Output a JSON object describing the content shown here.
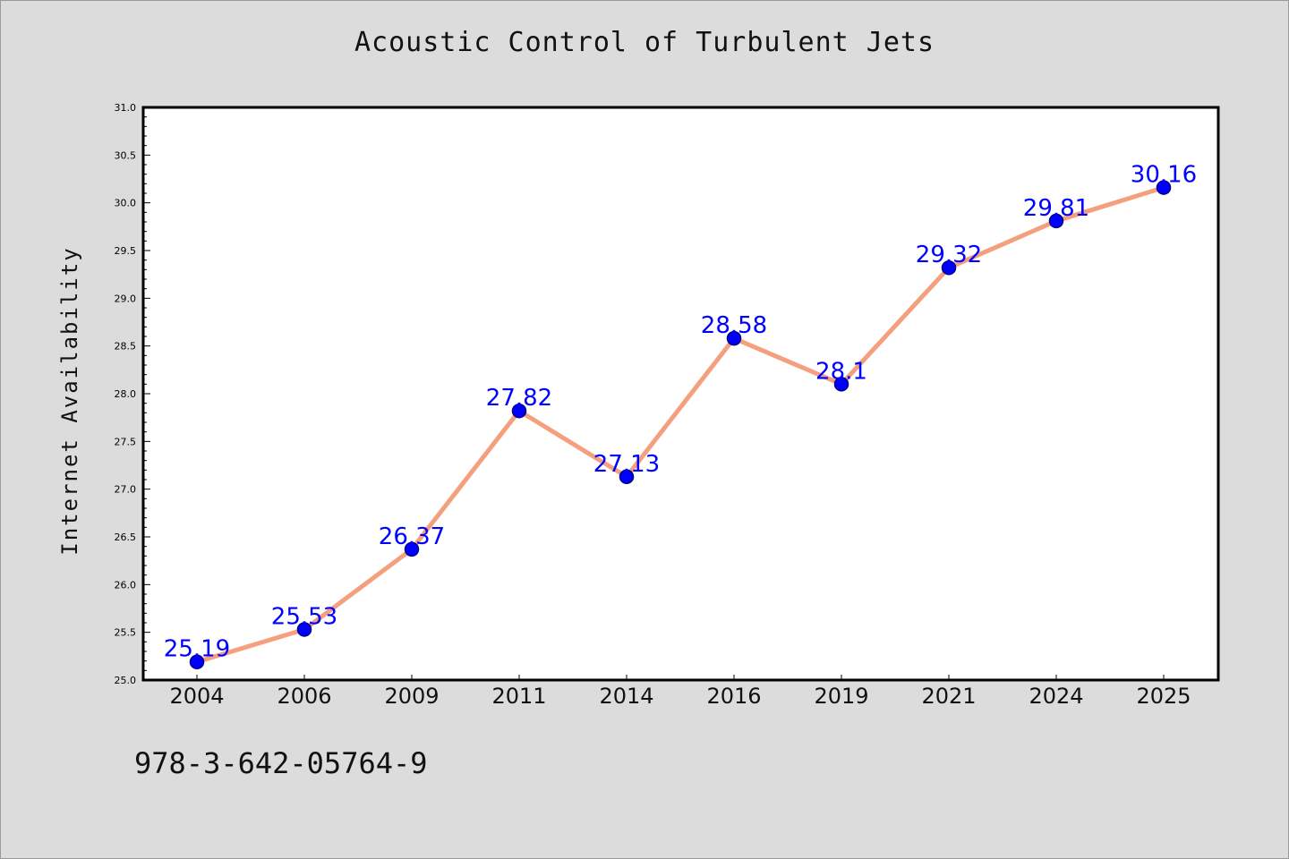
{
  "page": {
    "background": "#dcdcdc",
    "footer_text": "978-3-642-05764-9"
  },
  "chart_data": {
    "type": "line",
    "title": "Acoustic Control of Turbulent Jets",
    "xlabel": "",
    "ylabel": "Internet Availability",
    "categories": [
      "2004",
      "2006",
      "2009",
      "2011",
      "2014",
      "2016",
      "2019",
      "2021",
      "2024",
      "2025"
    ],
    "values": [
      25.19,
      25.53,
      26.37,
      27.82,
      27.13,
      28.58,
      28.1,
      29.32,
      29.81,
      30.16
    ],
    "data_labels": [
      "25.19",
      "25.53",
      "26.37",
      "27.82",
      "27.13",
      "28.58",
      "28.1",
      "29.32",
      "29.81",
      "30.16"
    ],
    "ylim": [
      25.0,
      31.0
    ],
    "y_ticks": [
      "25.0",
      "25.5",
      "26.0",
      "26.5",
      "27.0",
      "27.5",
      "28.0",
      "28.5",
      "29.0",
      "29.5",
      "30.0",
      "30.5",
      "31.0"
    ],
    "grid": false,
    "legend": "none",
    "colors": {
      "line": "#f4a07f",
      "marker": "#0000ff",
      "marker_edge": "#00008b",
      "labels": "#0000ff",
      "plot_background": "#ffffff"
    }
  }
}
